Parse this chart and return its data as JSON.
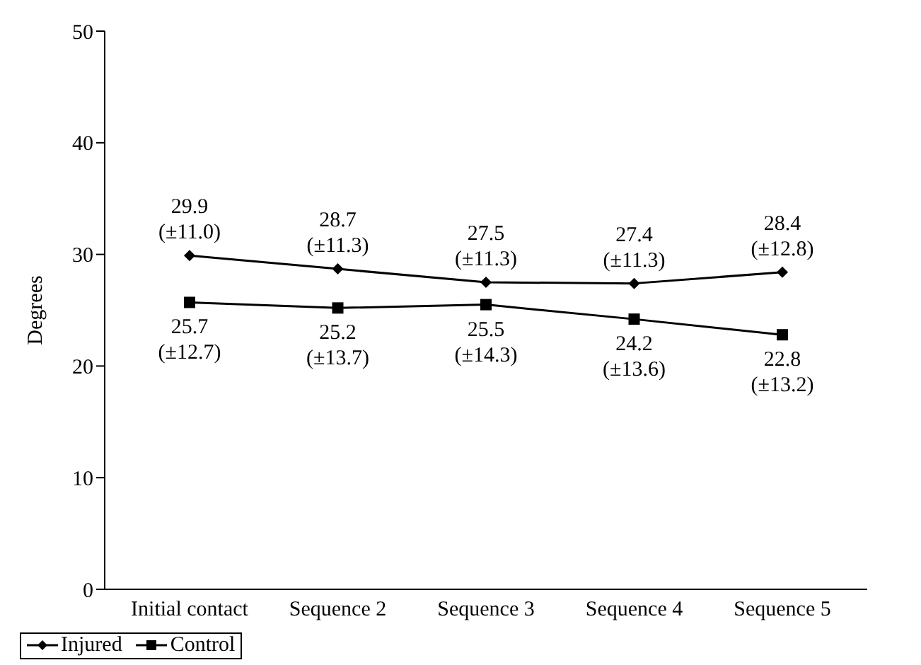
{
  "chart_data": {
    "type": "line",
    "ylabel": "Degrees",
    "categories": [
      "Initial contact",
      "Sequence 2",
      "Sequence 3",
      "Sequence 4",
      "Sequence 5"
    ],
    "series": [
      {
        "name": "Injured",
        "color": "#000000",
        "marker": "diamond",
        "values": [
          29.9,
          28.7,
          27.5,
          27.4,
          28.4
        ],
        "value_labels": [
          "29.9 (±11.0)",
          "28.7 (±11.3)",
          "27.5 (±11.3)",
          "27.4 (±11.3)",
          "28.4 (±12.8)"
        ]
      },
      {
        "name": "Control",
        "color": "#000000",
        "marker": "square",
        "values": [
          25.7,
          25.2,
          25.5,
          24.2,
          22.8
        ],
        "value_labels": [
          "25.7 (±12.7)",
          "25.2 (±13.7)",
          "25.5 (±14.3)",
          "24.2 (±13.6)",
          "22.8 (±13.2)"
        ]
      }
    ],
    "ylim": [
      0,
      50
    ],
    "yticks": [
      0,
      10,
      20,
      30,
      40,
      50
    ],
    "grid": false,
    "legend": "bottom",
    "line_style": "solid"
  }
}
